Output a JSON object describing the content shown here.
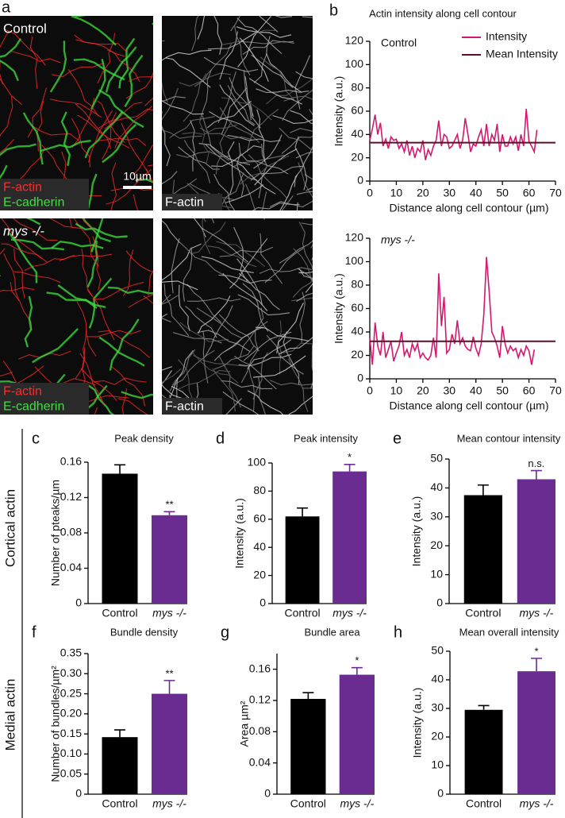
{
  "panel_a": {
    "letter": "a",
    "images": [
      {
        "label": "Control",
        "channels": [
          {
            "name": "F-actin",
            "color": "#ff2a2a"
          },
          {
            "name": "E-cadherin",
            "color": "#3ee03e"
          }
        ],
        "scale_bar": "10µm"
      },
      {
        "channels": [
          {
            "name": "F-actin",
            "color": "#ffffff"
          }
        ]
      },
      {
        "label": "mys -/-",
        "channels": [
          {
            "name": "F-actin",
            "color": "#ff2a2a"
          },
          {
            "name": "E-cadherin",
            "color": "#3ee03e"
          }
        ]
      },
      {
        "channels": [
          {
            "name": "F-actin",
            "color": "#ffffff"
          }
        ]
      }
    ]
  },
  "row_labels": [
    "Cortical actin",
    "Medial actin"
  ],
  "chart_data": [
    {
      "type": "line",
      "panel": "b",
      "title": "Actin intensity along cell contour",
      "annotation": "Control",
      "x_label": "Distance along cell contour (µm)",
      "y_label": "Intensity (a.u.)",
      "xlim": [
        0,
        70
      ],
      "xticks": [
        0,
        10,
        20,
        30,
        40,
        50,
        60,
        70
      ],
      "ylim": [
        0,
        120
      ],
      "yticks": [
        0,
        20,
        40,
        60,
        80,
        100,
        120
      ],
      "legend": "upper right",
      "series": [
        {
          "name": "Intensity",
          "color": "#d3186f",
          "x": [
            0,
            1,
            2,
            3,
            4,
            5,
            6,
            7,
            8,
            9,
            10,
            11,
            12,
            13,
            14,
            15,
            16,
            17,
            18,
            19,
            20,
            21,
            22,
            23,
            24,
            25,
            26,
            27,
            28,
            29,
            30,
            31,
            32,
            33,
            34,
            35,
            36,
            37,
            38,
            39,
            40,
            41,
            42,
            43,
            44,
            45,
            46,
            47,
            48,
            49,
            50,
            51,
            52,
            53,
            54,
            55,
            56,
            57,
            58,
            59,
            60,
            61,
            62,
            63
          ],
          "values": [
            35,
            45,
            57,
            40,
            50,
            30,
            36,
            28,
            38,
            35,
            36,
            28,
            32,
            25,
            35,
            22,
            30,
            20,
            28,
            25,
            35,
            18,
            27,
            22,
            30,
            35,
            52,
            30,
            40,
            38,
            28,
            30,
            35,
            40,
            28,
            35,
            54,
            40,
            25,
            32,
            30,
            38,
            44,
            30,
            49,
            30,
            40,
            35,
            49,
            25,
            40,
            30,
            30,
            38,
            32,
            38,
            26,
            40,
            30,
            62,
            34,
            30,
            25,
            44
          ]
        },
        {
          "name": "Mean Intensity",
          "color": "#5c0f25",
          "x": [
            0,
            70
          ],
          "values": [
            33,
            33
          ]
        }
      ]
    },
    {
      "type": "line",
      "annotation": "mys -/-",
      "x_label": "Distance along cell contour (µm)",
      "y_label": "Intensity (a.u.)",
      "xlim": [
        0,
        70
      ],
      "xticks": [
        0,
        10,
        20,
        30,
        40,
        50,
        60,
        70
      ],
      "ylim": [
        0,
        120
      ],
      "yticks": [
        0,
        20,
        40,
        60,
        80,
        100,
        120
      ],
      "series": [
        {
          "color": "#d3186f",
          "x": [
            0,
            1,
            2,
            3,
            4,
            5,
            6,
            7,
            8,
            9,
            10,
            11,
            12,
            13,
            14,
            15,
            16,
            17,
            18,
            19,
            20,
            21,
            22,
            23,
            24,
            25,
            26,
            27,
            28,
            29,
            30,
            31,
            32,
            33,
            34,
            35,
            36,
            37,
            38,
            39,
            40,
            41,
            42,
            43,
            44,
            45,
            46,
            47,
            48,
            49,
            50,
            51,
            52,
            53,
            54,
            55,
            56,
            57,
            58,
            59,
            60,
            61,
            62
          ],
          "values": [
            35,
            12,
            48,
            28,
            20,
            40,
            18,
            25,
            32,
            15,
            22,
            28,
            40,
            20,
            25,
            18,
            30,
            24,
            30,
            18,
            22,
            18,
            16,
            20,
            35,
            18,
            90,
            45,
            70,
            22,
            25,
            38,
            30,
            50,
            30,
            35,
            28,
            25,
            24,
            36,
            26,
            20,
            30,
            55,
            104,
            75,
            40,
            35,
            28,
            18,
            45,
            30,
            22,
            28,
            24,
            26,
            18,
            25,
            20,
            28,
            24,
            12,
            25
          ]
        },
        {
          "color": "#5c0f25",
          "x": [
            0,
            70
          ],
          "values": [
            32,
            32
          ]
        }
      ]
    },
    {
      "type": "bar",
      "panel": "c",
      "title": "Peak density",
      "y_label": "Number of pteaks/µm",
      "categories": [
        "Control",
        "mys -/-"
      ],
      "values": [
        0.147,
        0.1
      ],
      "errors": [
        0.01,
        0.004
      ],
      "colors": [
        "#000000",
        "#6a2c91"
      ],
      "annotations": [
        null,
        "**"
      ],
      "ylim": [
        0,
        0.16
      ],
      "yticks": [
        0,
        0.04,
        0.08,
        0.12,
        0.16
      ]
    },
    {
      "type": "bar",
      "panel": "d",
      "title": "Peak intensity",
      "y_label": "Intensity (a.u.)",
      "categories": [
        "Control",
        "mys -/-"
      ],
      "values": [
        62,
        94
      ],
      "errors": [
        6,
        5
      ],
      "colors": [
        "#000000",
        "#6a2c91"
      ],
      "annotations": [
        null,
        "*"
      ],
      "ylim": [
        0,
        100
      ],
      "yticks": [
        0,
        20,
        40,
        60,
        80,
        100
      ]
    },
    {
      "type": "bar",
      "panel": "e",
      "title": "Mean contour intensity",
      "y_label": "Intensity (a.u.)",
      "categories": [
        "Control",
        "mys -/-"
      ],
      "values": [
        37.5,
        43
      ],
      "errors": [
        3.5,
        3
      ],
      "colors": [
        "#000000",
        "#6a2c91"
      ],
      "annotations": [
        null,
        "n.s."
      ],
      "ylim": [
        0,
        50
      ],
      "yticks": [
        0,
        10,
        20,
        30,
        40,
        50
      ]
    },
    {
      "type": "bar",
      "panel": "f",
      "title": "Bundle density",
      "y_label": "Number of bundles/µm²",
      "categories": [
        "Control",
        "mys -/-"
      ],
      "values": [
        0.142,
        0.25
      ],
      "errors": [
        0.018,
        0.033
      ],
      "colors": [
        "#000000",
        "#6a2c91"
      ],
      "annotations": [
        null,
        "**"
      ],
      "ylim": [
        0,
        0.35
      ],
      "yticks": [
        0,
        0.05,
        {
          "value": 0.1,
          "label": "0.10"
        },
        0.15,
        {
          "value": 0.2,
          "label": "0.20"
        },
        0.25,
        {
          "value": 0.3,
          "label": "0.30"
        },
        0.35
      ]
    },
    {
      "type": "bar",
      "panel": "g",
      "title": "Bundle area",
      "y_label": "Area µm²",
      "categories": [
        "Control",
        "mys -/-"
      ],
      "values": [
        0.122,
        0.153
      ],
      "errors": [
        0.008,
        0.009
      ],
      "colors": [
        "#000000",
        "#6a2c91"
      ],
      "annotations": [
        null,
        "*"
      ],
      "ylim": [
        0,
        0.18
      ],
      "yticks": [
        0,
        0.04,
        0.08,
        0.12,
        0.16
      ]
    },
    {
      "type": "bar",
      "panel": "h",
      "title": "Mean overall intensity",
      "y_label": "Intensity (a.u.)",
      "categories": [
        "Control",
        "mys -/-"
      ],
      "values": [
        29.5,
        43
      ],
      "errors": [
        1.5,
        4.5
      ],
      "colors": [
        "#000000",
        "#6a2c91"
      ],
      "annotations": [
        null,
        "*"
      ],
      "ylim": [
        0,
        50
      ],
      "yticks": [
        0,
        10,
        20,
        30,
        40,
        50
      ]
    }
  ]
}
